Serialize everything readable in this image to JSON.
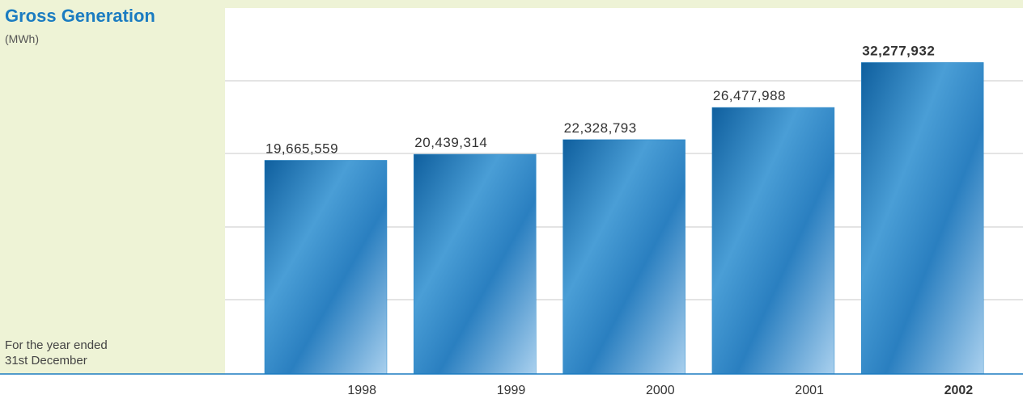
{
  "chart_data": {
    "type": "bar",
    "title": "Gross Generation",
    "subtitle": "(MWh)",
    "note": [
      "For the year ended",
      "31st December"
    ],
    "categories": [
      "1998",
      "1999",
      "2000",
      "2001",
      "2002"
    ],
    "values": [
      19665559,
      20439314,
      22328793,
      26477988,
      32277932
    ],
    "value_labels": [
      "19,665,559",
      "20,439,314",
      "22,328,793",
      "26,477,988",
      "32,277,932"
    ],
    "color": "#2a88c8",
    "ylim": [
      -7900000,
      39300000
    ]
  }
}
